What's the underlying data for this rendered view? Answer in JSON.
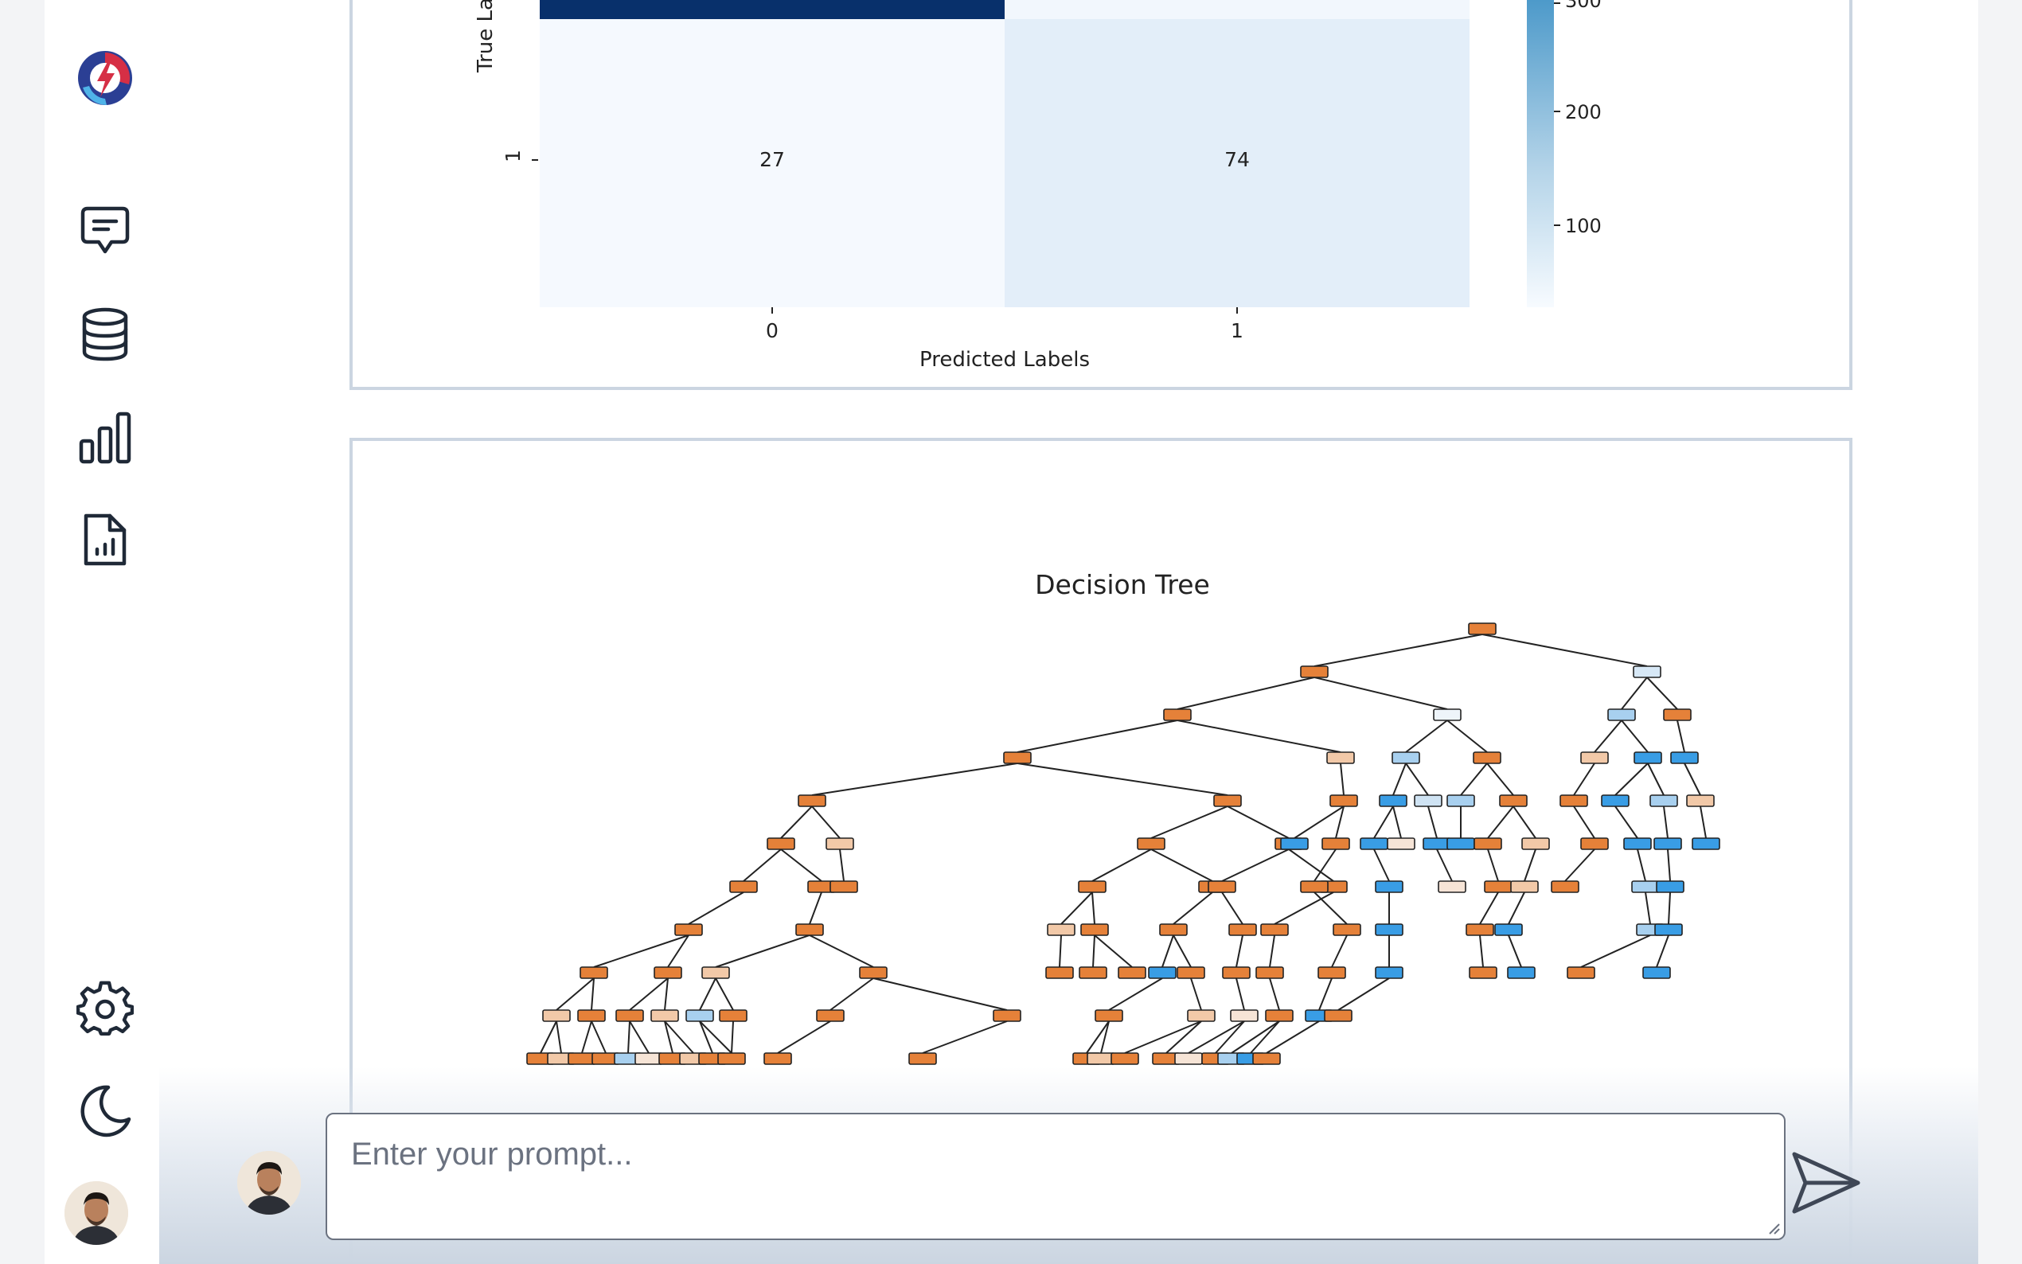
{
  "sidebar": {
    "items": [
      {
        "name": "logo",
        "icon": "app-logo-icon"
      },
      {
        "name": "chat",
        "icon": "chat-icon"
      },
      {
        "name": "database",
        "icon": "database-icon"
      },
      {
        "name": "charts",
        "icon": "bar-chart-icon"
      },
      {
        "name": "reports",
        "icon": "report-file-icon"
      },
      {
        "name": "settings",
        "icon": "gear-icon"
      },
      {
        "name": "theme",
        "icon": "moon-icon"
      },
      {
        "name": "profile",
        "icon": "avatar"
      }
    ]
  },
  "confusion_matrix": {
    "ylabel_partial": "True La",
    "xlabel": "Predicted Labels",
    "x_ticks": [
      "0",
      "1"
    ],
    "y_tick": "1",
    "cells": {
      "row1_col0": "27",
      "row1_col1": "74"
    },
    "colorbar_ticks": [
      "300",
      "200",
      "100"
    ]
  },
  "chart_data": [
    {
      "type": "heatmap",
      "title": "",
      "xlabel": "Predicted Labels",
      "ylabel": "True La",
      "x_categories": [
        "0",
        "1"
      ],
      "y_categories_visible": [
        "1"
      ],
      "values_visible": [
        [
          27,
          74
        ]
      ],
      "colorbar": {
        "ticks": [
          300,
          200,
          100
        ],
        "colormap": "Blues"
      }
    },
    {
      "type": "tree",
      "title": "Decision Tree"
    }
  ],
  "decision_tree": {
    "title": "Decision Tree"
  },
  "prompt": {
    "placeholder": "Enter your prompt..."
  },
  "colors": {
    "heat_dark": "#08306b",
    "heat_light": "#f7fbff",
    "heat_mid": "#e3eef9",
    "node_orange": "#e58139",
    "node_blue": "#399de5",
    "card_border": "#cbd5e1"
  }
}
